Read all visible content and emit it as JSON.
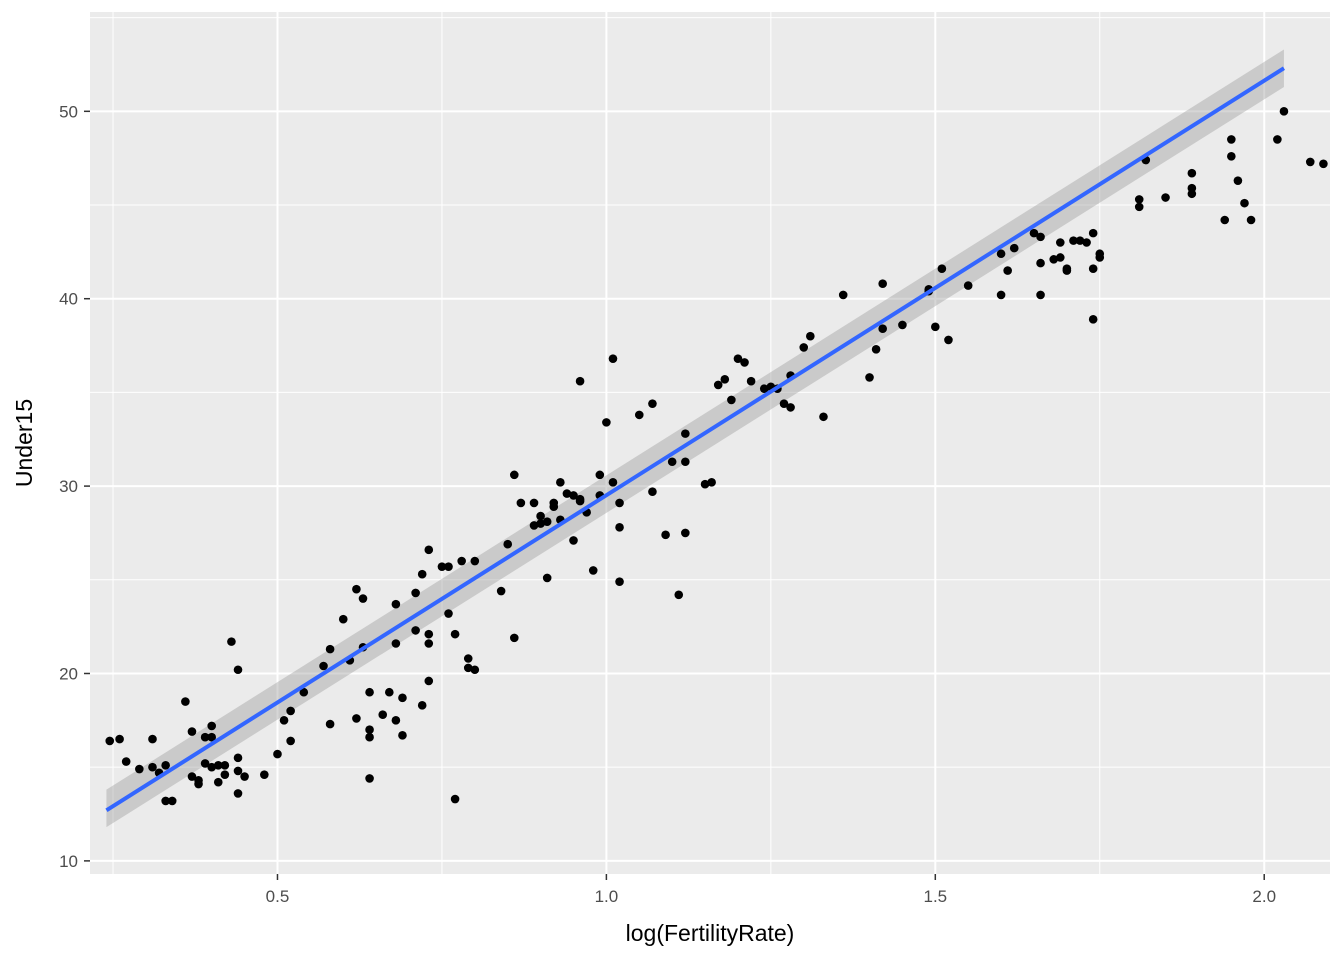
{
  "chart_data": {
    "type": "scatter",
    "xlabel": "log(FertilityRate)",
    "ylabel": "Under15",
    "xlim": [
      0.215,
      2.1
    ],
    "ylim": [
      9.3,
      55.3
    ],
    "x_ticks": [
      0.5,
      1.0,
      1.5,
      2.0
    ],
    "x_tick_labels": [
      "0.5",
      "1.0",
      "1.5",
      "2.0"
    ],
    "y_ticks": [
      10,
      20,
      30,
      40,
      50
    ],
    "y_tick_labels": [
      "10",
      "20",
      "30",
      "40",
      "50"
    ],
    "grid": true,
    "colors": {
      "panel": "#EBEBEB",
      "grid": "#FFFFFF",
      "point": "#000000",
      "fit_line": "#3366FF",
      "ribbon": "#999999"
    },
    "fit": {
      "method": "lm",
      "x": [
        0.24,
        2.03
      ],
      "y": [
        12.7,
        52.3
      ],
      "se_band_upper": [
        13.8,
        53.3
      ],
      "se_band_lower": [
        11.8,
        51.3
      ]
    },
    "points": [
      [
        0.245,
        16.4
      ],
      [
        0.26,
        16.5
      ],
      [
        0.27,
        15.3
      ],
      [
        0.29,
        14.9
      ],
      [
        0.31,
        16.5
      ],
      [
        0.31,
        15.0
      ],
      [
        0.32,
        14.7
      ],
      [
        0.33,
        15.1
      ],
      [
        0.33,
        13.2
      ],
      [
        0.34,
        13.2
      ],
      [
        0.36,
        18.5
      ],
      [
        0.37,
        16.9
      ],
      [
        0.37,
        14.5
      ],
      [
        0.38,
        14.1
      ],
      [
        0.38,
        14.3
      ],
      [
        0.39,
        16.6
      ],
      [
        0.39,
        15.2
      ],
      [
        0.4,
        17.2
      ],
      [
        0.4,
        16.6
      ],
      [
        0.4,
        15.0
      ],
      [
        0.41,
        15.1
      ],
      [
        0.41,
        14.2
      ],
      [
        0.42,
        15.1
      ],
      [
        0.42,
        14.6
      ],
      [
        0.43,
        21.7
      ],
      [
        0.44,
        20.2
      ],
      [
        0.44,
        15.5
      ],
      [
        0.44,
        14.8
      ],
      [
        0.44,
        13.6
      ],
      [
        0.45,
        14.5
      ],
      [
        0.48,
        14.6
      ],
      [
        0.5,
        15.7
      ],
      [
        0.51,
        17.5
      ],
      [
        0.52,
        18.0
      ],
      [
        0.52,
        16.4
      ],
      [
        0.54,
        19.0
      ],
      [
        0.57,
        20.4
      ],
      [
        0.58,
        21.3
      ],
      [
        0.58,
        17.3
      ],
      [
        0.6,
        22.9
      ],
      [
        0.61,
        20.7
      ],
      [
        0.62,
        24.5
      ],
      [
        0.62,
        17.6
      ],
      [
        0.63,
        24.0
      ],
      [
        0.63,
        21.4
      ],
      [
        0.64,
        19.0
      ],
      [
        0.64,
        17.0
      ],
      [
        0.64,
        16.6
      ],
      [
        0.64,
        14.4
      ],
      [
        0.66,
        17.8
      ],
      [
        0.67,
        19.0
      ],
      [
        0.68,
        23.7
      ],
      [
        0.68,
        21.6
      ],
      [
        0.68,
        17.5
      ],
      [
        0.69,
        18.7
      ],
      [
        0.69,
        16.7
      ],
      [
        0.71,
        24.3
      ],
      [
        0.71,
        22.3
      ],
      [
        0.72,
        25.3
      ],
      [
        0.72,
        18.3
      ],
      [
        0.73,
        26.6
      ],
      [
        0.73,
        22.1
      ],
      [
        0.73,
        21.6
      ],
      [
        0.73,
        19.6
      ],
      [
        0.75,
        25.7
      ],
      [
        0.76,
        25.7
      ],
      [
        0.76,
        23.2
      ],
      [
        0.77,
        13.3
      ],
      [
        0.77,
        22.1
      ],
      [
        0.78,
        26.0
      ],
      [
        0.79,
        20.3
      ],
      [
        0.79,
        20.8
      ],
      [
        0.8,
        20.2
      ],
      [
        0.8,
        26.0
      ],
      [
        0.84,
        24.4
      ],
      [
        0.85,
        26.9
      ],
      [
        0.86,
        30.6
      ],
      [
        0.86,
        21.9
      ],
      [
        0.87,
        29.1
      ],
      [
        0.89,
        27.9
      ],
      [
        0.89,
        29.1
      ],
      [
        0.9,
        28.4
      ],
      [
        0.9,
        28.0
      ],
      [
        0.91,
        25.1
      ],
      [
        0.91,
        28.1
      ],
      [
        0.92,
        28.9
      ],
      [
        0.92,
        29.1
      ],
      [
        0.93,
        30.2
      ],
      [
        0.93,
        28.2
      ],
      [
        0.94,
        29.6
      ],
      [
        0.95,
        27.1
      ],
      [
        0.95,
        29.5
      ],
      [
        0.96,
        29.3
      ],
      [
        0.96,
        35.6
      ],
      [
        0.96,
        29.2
      ],
      [
        0.97,
        28.6
      ],
      [
        0.98,
        25.5
      ],
      [
        0.99,
        29.5
      ],
      [
        0.99,
        30.6
      ],
      [
        1.0,
        33.4
      ],
      [
        1.01,
        30.2
      ],
      [
        1.01,
        36.8
      ],
      [
        1.02,
        29.1
      ],
      [
        1.02,
        27.8
      ],
      [
        1.02,
        24.9
      ],
      [
        1.05,
        33.8
      ],
      [
        1.07,
        29.7
      ],
      [
        1.07,
        34.4
      ],
      [
        1.09,
        27.4
      ],
      [
        1.1,
        31.3
      ],
      [
        1.11,
        24.2
      ],
      [
        1.12,
        27.5
      ],
      [
        1.12,
        32.8
      ],
      [
        1.12,
        31.3
      ],
      [
        1.15,
        30.1
      ],
      [
        1.16,
        30.2
      ],
      [
        1.17,
        35.4
      ],
      [
        1.18,
        35.7
      ],
      [
        1.19,
        34.6
      ],
      [
        1.2,
        36.8
      ],
      [
        1.21,
        36.6
      ],
      [
        1.22,
        35.6
      ],
      [
        1.24,
        35.2
      ],
      [
        1.25,
        35.3
      ],
      [
        1.26,
        35.2
      ],
      [
        1.27,
        34.4
      ],
      [
        1.28,
        34.2
      ],
      [
        1.28,
        35.9
      ],
      [
        1.3,
        37.4
      ],
      [
        1.31,
        38.0
      ],
      [
        1.33,
        33.7
      ],
      [
        1.36,
        40.2
      ],
      [
        1.4,
        35.8
      ],
      [
        1.41,
        37.3
      ],
      [
        1.42,
        38.4
      ],
      [
        1.42,
        40.8
      ],
      [
        1.45,
        38.6
      ],
      [
        1.49,
        40.5
      ],
      [
        1.49,
        40.4
      ],
      [
        1.5,
        38.5
      ],
      [
        1.51,
        41.6
      ],
      [
        1.52,
        37.8
      ],
      [
        1.55,
        40.7
      ],
      [
        1.6,
        42.4
      ],
      [
        1.6,
        40.2
      ],
      [
        1.61,
        41.5
      ],
      [
        1.62,
        42.7
      ],
      [
        1.65,
        43.5
      ],
      [
        1.66,
        41.9
      ],
      [
        1.66,
        43.3
      ],
      [
        1.66,
        40.2
      ],
      [
        1.68,
        42.1
      ],
      [
        1.69,
        43.0
      ],
      [
        1.69,
        42.2
      ],
      [
        1.7,
        41.5
      ],
      [
        1.7,
        41.6
      ],
      [
        1.71,
        43.1
      ],
      [
        1.72,
        43.1
      ],
      [
        1.73,
        43.0
      ],
      [
        1.74,
        43.5
      ],
      [
        1.74,
        38.9
      ],
      [
        1.74,
        41.6
      ],
      [
        1.75,
        42.4
      ],
      [
        1.75,
        42.2
      ],
      [
        1.81,
        45.3
      ],
      [
        1.81,
        44.9
      ],
      [
        1.82,
        47.4
      ],
      [
        1.85,
        45.4
      ],
      [
        1.89,
        46.7
      ],
      [
        1.89,
        45.9
      ],
      [
        1.89,
        45.6
      ],
      [
        1.94,
        44.2
      ],
      [
        1.95,
        48.5
      ],
      [
        1.95,
        47.6
      ],
      [
        1.96,
        46.3
      ],
      [
        1.97,
        45.1
      ],
      [
        1.98,
        44.2
      ],
      [
        2.02,
        48.5
      ],
      [
        2.07,
        47.3
      ],
      [
        2.09,
        47.2
      ],
      [
        2.03,
        50.0
      ]
    ]
  }
}
